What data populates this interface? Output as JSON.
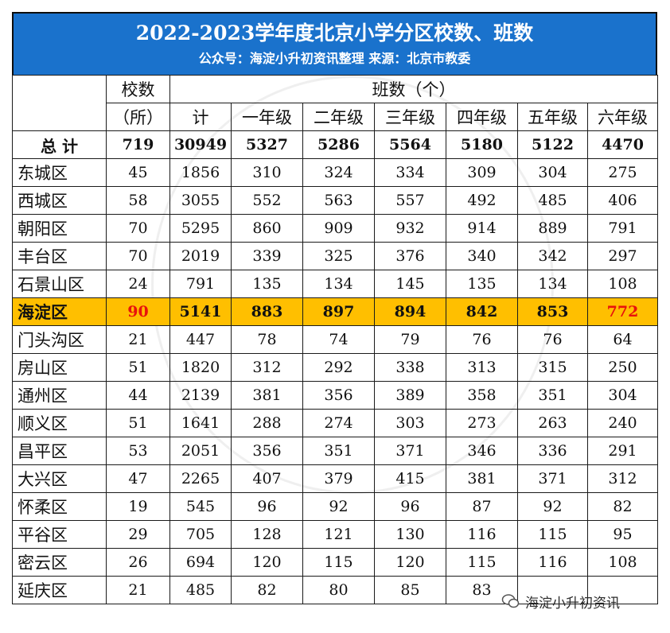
{
  "banner": {
    "title": "2022-2023学年度北京小学分区校数、班数",
    "subtitle": "公众号：海淀小升初资讯整理 来源：北京市教委"
  },
  "headers": {
    "schools_1": "校数",
    "schools_2": "（所）",
    "classes": "班数（个）",
    "cols": [
      "计",
      "一年级",
      "二年级",
      "三年级",
      "四年级",
      "五年级",
      "六年级"
    ]
  },
  "total": {
    "name": "总 计",
    "values": [
      "719",
      "30949",
      "5327",
      "5286",
      "5564",
      "5180",
      "5122",
      "4470"
    ]
  },
  "rows": [
    {
      "name": "东城区",
      "values": [
        "45",
        "1856",
        "310",
        "324",
        "334",
        "309",
        "304",
        "275"
      ]
    },
    {
      "name": "西城区",
      "values": [
        "58",
        "3055",
        "552",
        "563",
        "557",
        "492",
        "485",
        "406"
      ]
    },
    {
      "name": "朝阳区",
      "values": [
        "70",
        "5295",
        "860",
        "909",
        "932",
        "914",
        "889",
        "791"
      ]
    },
    {
      "name": "丰台区",
      "values": [
        "70",
        "2019",
        "339",
        "325",
        "376",
        "340",
        "342",
        "297"
      ]
    },
    {
      "name": "石景山区",
      "values": [
        "24",
        "791",
        "135",
        "134",
        "145",
        "135",
        "134",
        "108"
      ]
    },
    {
      "name": "海淀区",
      "values": [
        "90",
        "5141",
        "883",
        "897",
        "894",
        "842",
        "853",
        "772"
      ]
    },
    {
      "name": "门头沟区",
      "values": [
        "21",
        "447",
        "78",
        "74",
        "79",
        "76",
        "76",
        "64"
      ]
    },
    {
      "name": "房山区",
      "values": [
        "51",
        "1820",
        "312",
        "292",
        "338",
        "313",
        "315",
        "250"
      ]
    },
    {
      "name": "通州区",
      "values": [
        "44",
        "2139",
        "381",
        "356",
        "389",
        "358",
        "351",
        "304"
      ]
    },
    {
      "name": "顺义区",
      "values": [
        "51",
        "1641",
        "288",
        "274",
        "303",
        "273",
        "263",
        "240"
      ]
    },
    {
      "name": "昌平区",
      "values": [
        "53",
        "2051",
        "356",
        "351",
        "371",
        "346",
        "336",
        "291"
      ]
    },
    {
      "name": "大兴区",
      "values": [
        "47",
        "2265",
        "407",
        "379",
        "415",
        "381",
        "371",
        "312"
      ]
    },
    {
      "name": "怀柔区",
      "values": [
        "19",
        "545",
        "96",
        "92",
        "96",
        "87",
        "92",
        "82"
      ]
    },
    {
      "name": "平谷区",
      "values": [
        "29",
        "705",
        "128",
        "121",
        "130",
        "116",
        "115",
        "95"
      ]
    },
    {
      "name": "密云区",
      "values": [
        "26",
        "694",
        "120",
        "115",
        "120",
        "115",
        "116",
        "108"
      ]
    },
    {
      "name": "延庆区",
      "values": [
        "21",
        "485",
        "82",
        "80",
        "85",
        "83",
        "",
        ""
      ]
    }
  ],
  "highlight_row": 5,
  "watermark": {
    "icon": "wechat-icon",
    "text": "海淀小升初资讯"
  },
  "colors": {
    "banner": "#1a72cc",
    "highlight": "#ffbf00",
    "red_text": "#e8120c"
  }
}
